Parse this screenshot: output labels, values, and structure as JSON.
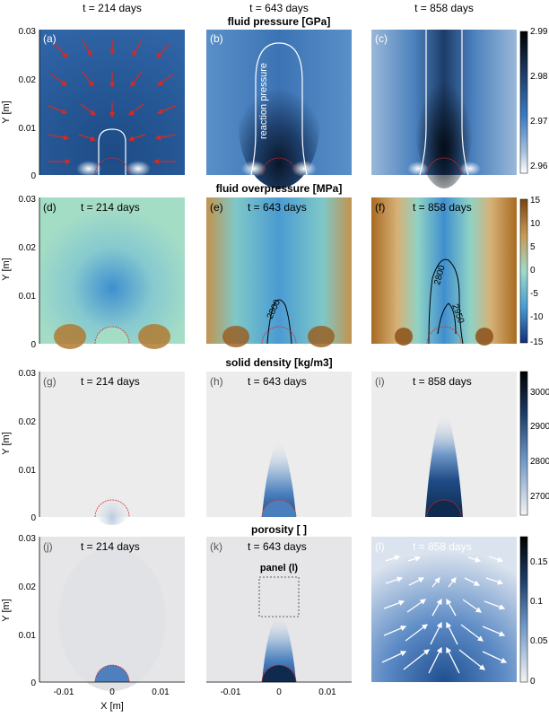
{
  "time_labels": [
    "t = 214 days",
    "t = 643 days",
    "t = 858 days"
  ],
  "rows": [
    {
      "title": "fluid pressure [GPa]",
      "panels": [
        "(a)",
        "(b)",
        "(c)"
      ],
      "colorbar": {
        "ticks": [
          "2.99",
          "2.98",
          "2.97",
          "2.96"
        ]
      },
      "annotation": "reaction pressure"
    },
    {
      "title": "fluid overpressure [MPa]",
      "panels": [
        "(d)",
        "(e)",
        "(f)"
      ],
      "panel_times": [
        "t = 214 days",
        "t = 643 days",
        "t = 858 days"
      ],
      "colorbar": {
        "ticks": [
          "15",
          "10",
          "5",
          "0",
          "-5",
          "-10",
          "-15"
        ]
      },
      "contour_labels": [
        "2800",
        "2800",
        "2950"
      ]
    },
    {
      "title": "solid density [kg/m3]",
      "panels": [
        "(g)",
        "(h)",
        "(i)"
      ],
      "panel_times": [
        "t = 214 days",
        "t = 643 days",
        "t = 858 days"
      ],
      "colorbar": {
        "ticks": [
          "3000",
          "2900",
          "2800",
          "2700"
        ]
      }
    },
    {
      "title": "porosity [ ]",
      "panels": [
        "(j)",
        "(k)",
        "(l)"
      ],
      "panel_times": [
        "t = 214 days",
        "t = 643 days",
        "t = 858 days"
      ],
      "colorbar": {
        "ticks": [
          "0.15",
          "0.1",
          "0.05",
          "0"
        ]
      },
      "inset_label": "panel (l)"
    }
  ],
  "y_axis": {
    "label": "Y [m]",
    "ticks": [
      "0.03",
      "0.02",
      "0.01",
      "0"
    ]
  },
  "x_axis": {
    "label": "X [m]",
    "ticks": [
      "-0.01",
      "0",
      "0.01"
    ]
  },
  "colors": {
    "pressure_dark": "#0d1a2e",
    "pressure_mid": "#3d78b8",
    "overpressure_pos": "#a4661c",
    "overpressure_mid": "#8fd3c2",
    "overpressure_neg": "#2a5aa8",
    "grain_outline": "#e0282a",
    "arrow_red": "#d42a24"
  }
}
